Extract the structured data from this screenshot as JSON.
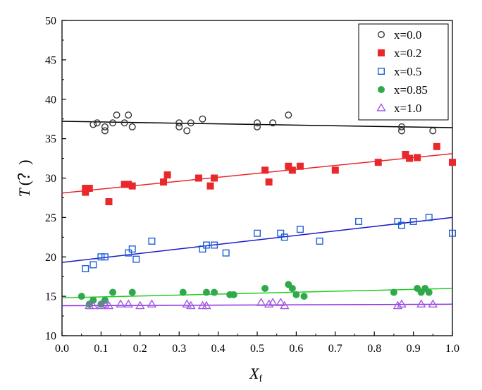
{
  "chart_data": {
    "type": "scatter",
    "title": "",
    "xlabel": {
      "main": "X",
      "sub": "f"
    },
    "ylabel": {
      "main": "T",
      "unit": "(？)"
    },
    "xlim": [
      0.0,
      1.0
    ],
    "ylim": [
      10,
      50
    ],
    "xticks": [
      0.0,
      0.1,
      0.2,
      0.3,
      0.4,
      0.5,
      0.6,
      0.7,
      0.8,
      0.9,
      1.0
    ],
    "yticks": [
      10,
      15,
      20,
      25,
      30,
      35,
      40,
      45,
      50
    ],
    "xtick_labels": [
      "0.0",
      "0.1",
      "0.2",
      "0.3",
      "0.4",
      "0.5",
      "0.6",
      "0.7",
      "0.8",
      "0.9",
      "1.0"
    ],
    "ytick_labels": [
      "10",
      "15",
      "20",
      "25",
      "30",
      "35",
      "40",
      "45",
      "50"
    ],
    "grid": false,
    "legend_position": "top-right",
    "series": [
      {
        "name": "x=0.0",
        "marker": "open-circle",
        "color": "#333333",
        "fit_color": "#000000",
        "fit": [
          37.2,
          36.4
        ],
        "points": [
          [
            0.08,
            36.8
          ],
          [
            0.09,
            37.0
          ],
          [
            0.11,
            36.0
          ],
          [
            0.11,
            36.5
          ],
          [
            0.13,
            37.0
          ],
          [
            0.14,
            38.0
          ],
          [
            0.16,
            37.0
          ],
          [
            0.17,
            38.0
          ],
          [
            0.18,
            36.5
          ],
          [
            0.3,
            36.5
          ],
          [
            0.3,
            37.0
          ],
          [
            0.32,
            36.0
          ],
          [
            0.33,
            37.0
          ],
          [
            0.36,
            37.5
          ],
          [
            0.5,
            36.5
          ],
          [
            0.5,
            37.0
          ],
          [
            0.54,
            37.0
          ],
          [
            0.58,
            38.0
          ],
          [
            0.87,
            36.0
          ],
          [
            0.87,
            36.5
          ],
          [
            0.95,
            36.0
          ]
        ]
      },
      {
        "name": "x=0.2",
        "marker": "filled-square",
        "color": "#e8282b",
        "fit_color": "#e8282b",
        "fit": [
          28.1,
          33.1
        ],
        "points": [
          [
            0.06,
            28.2
          ],
          [
            0.06,
            28.7
          ],
          [
            0.07,
            28.7
          ],
          [
            0.12,
            27.0
          ],
          [
            0.16,
            29.2
          ],
          [
            0.17,
            29.2
          ],
          [
            0.18,
            29.0
          ],
          [
            0.26,
            29.5
          ],
          [
            0.27,
            30.4
          ],
          [
            0.35,
            30.0
          ],
          [
            0.38,
            29.0
          ],
          [
            0.39,
            30.0
          ],
          [
            0.52,
            31.0
          ],
          [
            0.53,
            29.5
          ],
          [
            0.58,
            31.5
          ],
          [
            0.59,
            31.0
          ],
          [
            0.61,
            31.5
          ],
          [
            0.7,
            31.0
          ],
          [
            0.81,
            32.0
          ],
          [
            0.88,
            33.0
          ],
          [
            0.89,
            32.5
          ],
          [
            0.91,
            32.6
          ],
          [
            0.96,
            34.0
          ],
          [
            1.0,
            32.0
          ]
        ]
      },
      {
        "name": "x=0.5",
        "marker": "open-square",
        "color": "#1f5fd6",
        "fit_color": "#1a1ac8",
        "fit": [
          19.3,
          25.0
        ],
        "points": [
          [
            0.06,
            18.5
          ],
          [
            0.08,
            19.0
          ],
          [
            0.1,
            20.0
          ],
          [
            0.11,
            20.0
          ],
          [
            0.17,
            20.5
          ],
          [
            0.18,
            21.0
          ],
          [
            0.19,
            19.7
          ],
          [
            0.23,
            22.0
          ],
          [
            0.36,
            21.0
          ],
          [
            0.37,
            21.5
          ],
          [
            0.39,
            21.5
          ],
          [
            0.42,
            20.5
          ],
          [
            0.5,
            23.0
          ],
          [
            0.56,
            23.0
          ],
          [
            0.57,
            22.5
          ],
          [
            0.61,
            23.5
          ],
          [
            0.66,
            22.0
          ],
          [
            0.76,
            24.5
          ],
          [
            0.86,
            24.5
          ],
          [
            0.87,
            24.0
          ],
          [
            0.9,
            24.5
          ],
          [
            0.94,
            25.0
          ],
          [
            1.0,
            23.0
          ]
        ]
      },
      {
        "name": "x=0.85",
        "marker": "filled-circle",
        "color": "#2eaa4a",
        "fit_color": "#22cc22",
        "fit": [
          14.8,
          16.0
        ],
        "points": [
          [
            0.05,
            15.0
          ],
          [
            0.07,
            14.0
          ],
          [
            0.08,
            14.5
          ],
          [
            0.1,
            14.0
          ],
          [
            0.11,
            14.5
          ],
          [
            0.13,
            15.5
          ],
          [
            0.18,
            15.5
          ],
          [
            0.31,
            15.5
          ],
          [
            0.37,
            15.5
          ],
          [
            0.39,
            15.5
          ],
          [
            0.43,
            15.2
          ],
          [
            0.44,
            15.2
          ],
          [
            0.52,
            16.0
          ],
          [
            0.58,
            16.5
          ],
          [
            0.59,
            16.0
          ],
          [
            0.6,
            15.2
          ],
          [
            0.62,
            15.0
          ],
          [
            0.85,
            15.5
          ],
          [
            0.91,
            16.0
          ],
          [
            0.92,
            15.5
          ],
          [
            0.93,
            16.0
          ],
          [
            0.94,
            15.5
          ]
        ]
      },
      {
        "name": "x=1.0",
        "marker": "open-triangle",
        "color": "#a259e0",
        "fit_color": "#8a2be2",
        "fit": [
          13.8,
          14.0
        ],
        "points": [
          [
            0.07,
            13.8
          ],
          [
            0.08,
            13.8
          ],
          [
            0.1,
            13.8
          ],
          [
            0.11,
            14.0
          ],
          [
            0.12,
            13.8
          ],
          [
            0.15,
            14.0
          ],
          [
            0.17,
            14.0
          ],
          [
            0.2,
            13.8
          ],
          [
            0.23,
            14.0
          ],
          [
            0.32,
            14.0
          ],
          [
            0.33,
            13.8
          ],
          [
            0.36,
            13.8
          ],
          [
            0.37,
            13.8
          ],
          [
            0.51,
            14.2
          ],
          [
            0.53,
            14.0
          ],
          [
            0.54,
            14.2
          ],
          [
            0.56,
            14.2
          ],
          [
            0.57,
            13.8
          ],
          [
            0.86,
            13.8
          ],
          [
            0.87,
            14.0
          ],
          [
            0.92,
            14.0
          ],
          [
            0.95,
            14.0
          ]
        ]
      }
    ]
  }
}
